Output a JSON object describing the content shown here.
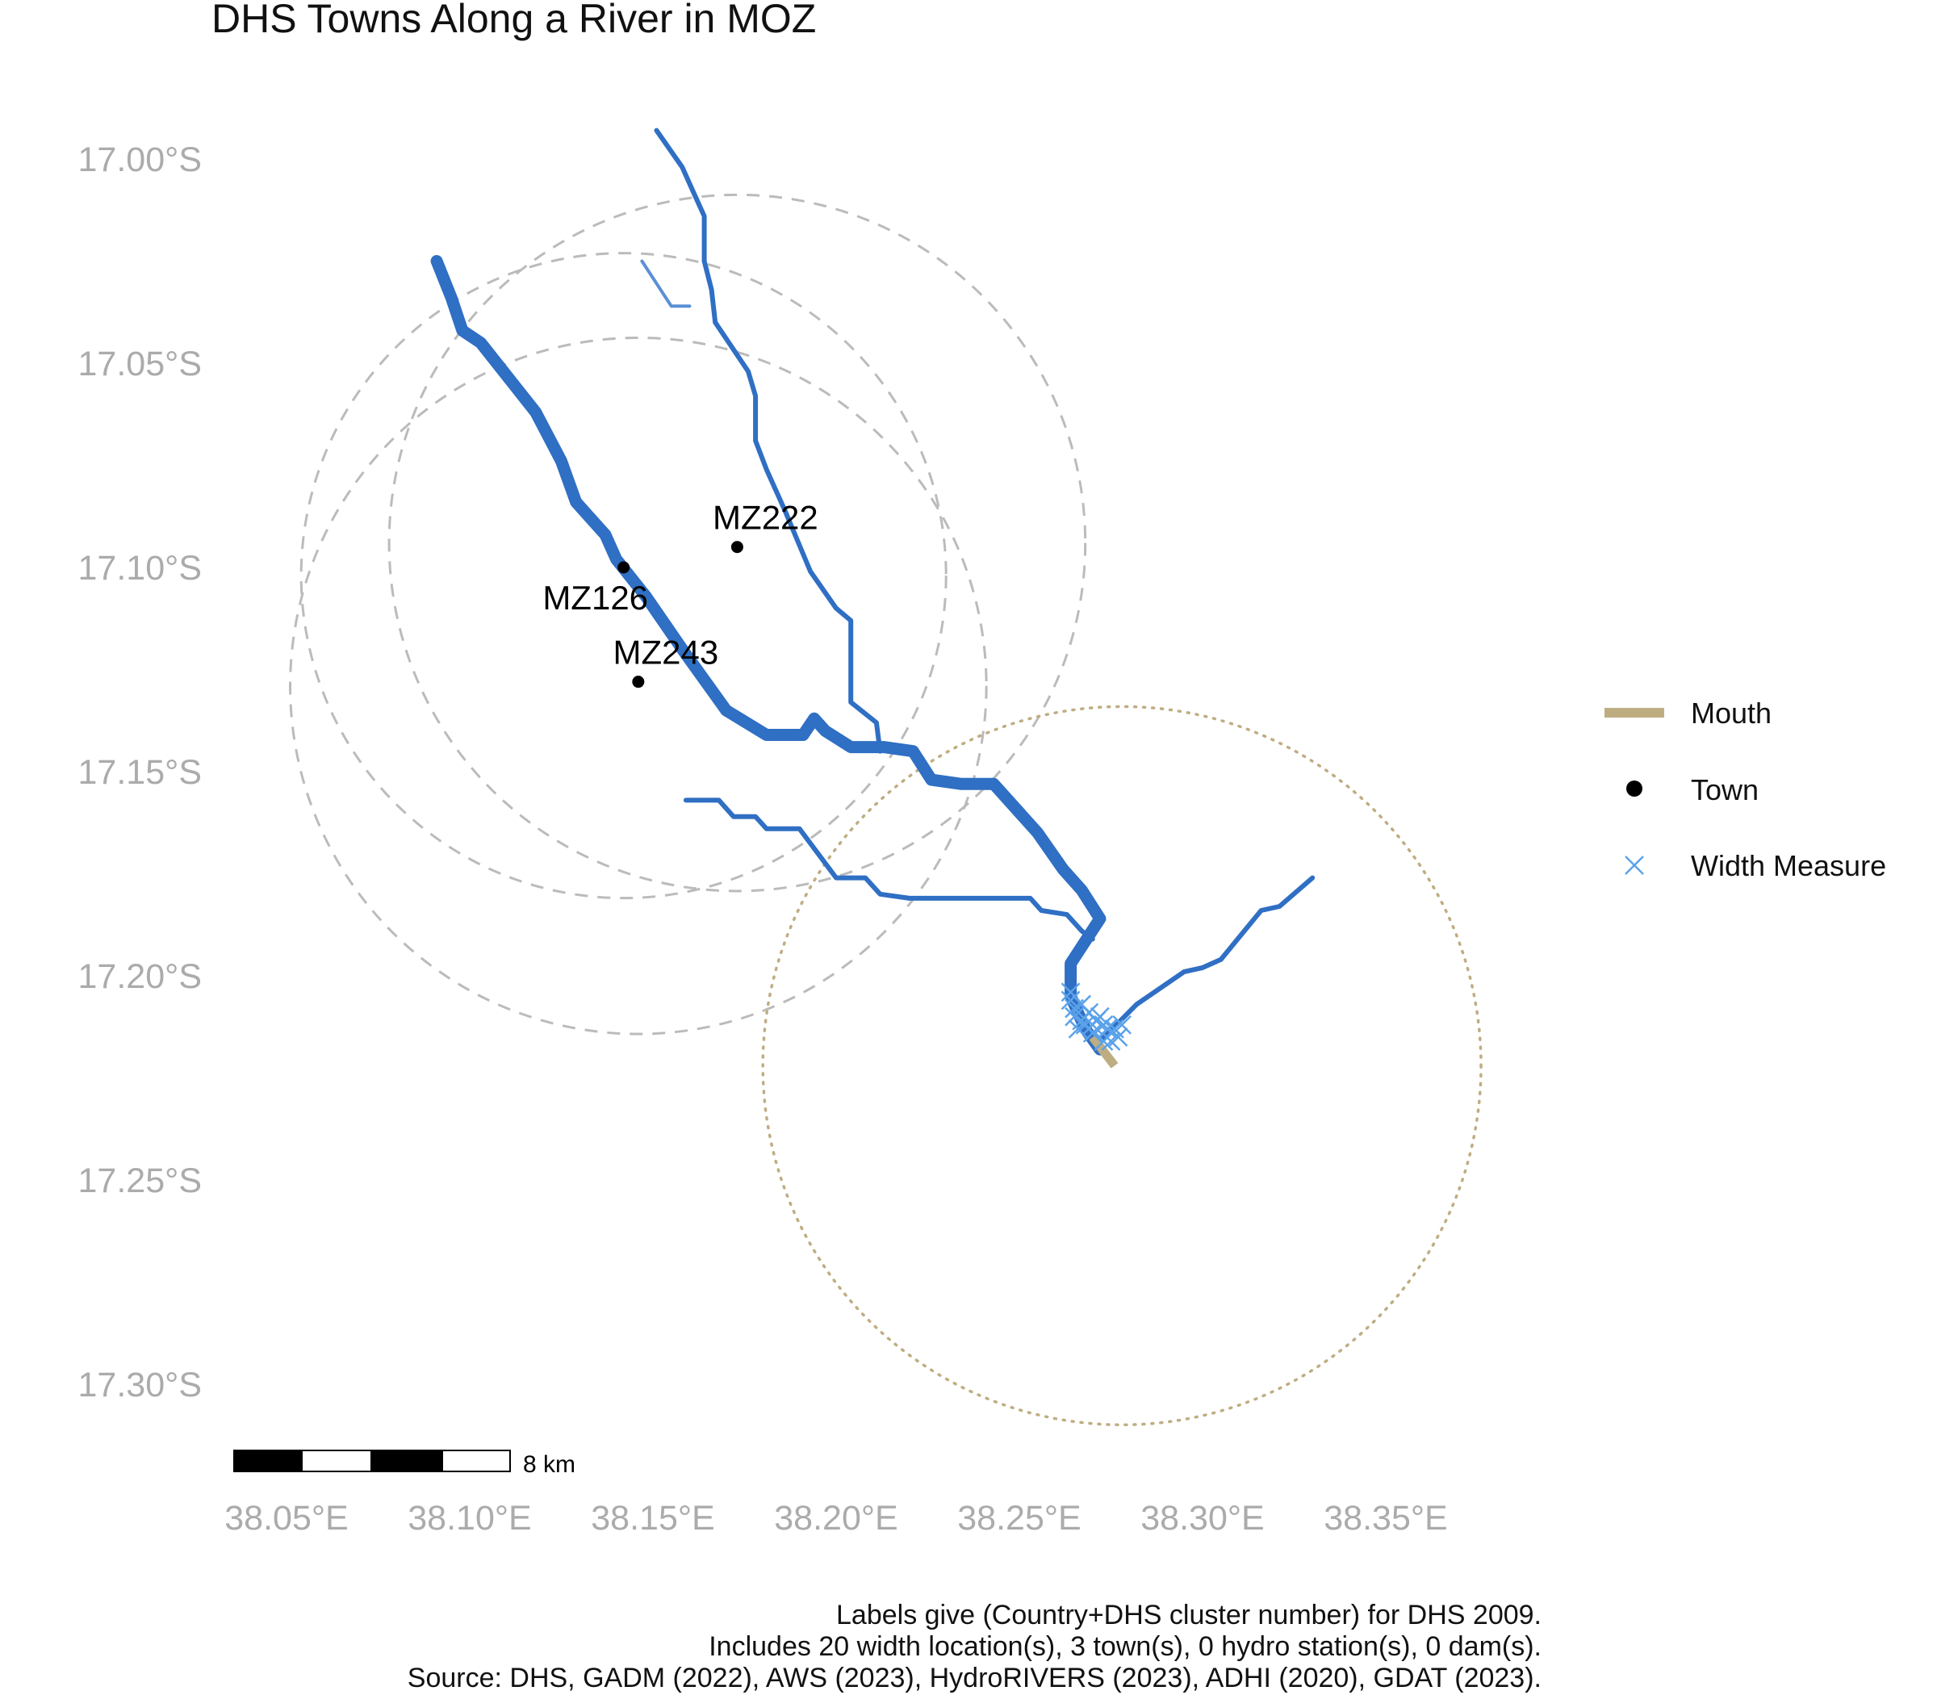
{
  "title": "DHS Towns Along a River in MOZ",
  "axes": {
    "y_ticks": [
      {
        "label": "17.00°S",
        "value": -17.0
      },
      {
        "label": "17.05°S",
        "value": -17.05
      },
      {
        "label": "17.10°S",
        "value": -17.1
      },
      {
        "label": "17.15°S",
        "value": -17.15
      },
      {
        "label": "17.20°S",
        "value": -17.2
      },
      {
        "label": "17.25°S",
        "value": -17.25
      },
      {
        "label": "17.30°S",
        "value": -17.3
      }
    ],
    "x_ticks": [
      {
        "label": "38.05°E",
        "value": 38.05
      },
      {
        "label": "38.10°E",
        "value": 38.1
      },
      {
        "label": "38.15°E",
        "value": 38.15
      },
      {
        "label": "38.20°E",
        "value": 38.2
      },
      {
        "label": "38.25°E",
        "value": 38.25
      },
      {
        "label": "38.30°E",
        "value": 38.3
      },
      {
        "label": "38.35°E",
        "value": 38.35
      }
    ]
  },
  "colors": {
    "river": "#2f6fc4",
    "river_light": "#5b8fd4",
    "mouth": "#bfad82",
    "width_measure": "#5aa2ea",
    "town": "#000000",
    "buffer": "#bbbbbb",
    "axis_text": "#ababab"
  },
  "rivers": [
    {
      "id": "main-stem",
      "kind": "main",
      "points": [
        [
          38.091,
          -17.025
        ],
        [
          38.095,
          -17.034
        ],
        [
          38.098,
          -17.042
        ],
        [
          38.103,
          -17.045
        ],
        [
          38.118,
          -17.062
        ],
        [
          38.125,
          -17.074
        ],
        [
          38.129,
          -17.084
        ],
        [
          38.133,
          -17.088
        ],
        [
          38.137,
          -17.092
        ],
        [
          38.14,
          -17.098
        ],
        [
          38.148,
          -17.107
        ],
        [
          38.158,
          -17.12
        ],
        [
          38.17,
          -17.135
        ],
        [
          38.181,
          -17.141
        ],
        [
          38.191,
          -17.141
        ],
        [
          38.194,
          -17.137
        ],
        [
          38.197,
          -17.14
        ],
        [
          38.204,
          -17.144
        ],
        [
          38.213,
          -17.144
        ],
        [
          38.221,
          -17.145
        ],
        [
          38.226,
          -17.152
        ],
        [
          38.234,
          -17.153
        ],
        [
          38.243,
          -17.153
        ],
        [
          38.255,
          -17.165
        ],
        [
          38.262,
          -17.174
        ],
        [
          38.267,
          -17.179
        ],
        [
          38.272,
          -17.186
        ],
        [
          38.264,
          -17.197
        ],
        [
          38.264,
          -17.205
        ],
        [
          38.268,
          -17.213
        ],
        [
          38.272,
          -17.218
        ]
      ]
    },
    {
      "id": "north-tributary",
      "kind": "tributary",
      "points": [
        [
          38.151,
          -16.993
        ],
        [
          38.158,
          -17.002
        ],
        [
          38.161,
          -17.008
        ],
        [
          38.164,
          -17.014
        ],
        [
          38.164,
          -17.025
        ],
        [
          38.166,
          -17.032
        ],
        [
          38.167,
          -17.04
        ],
        [
          38.176,
          -17.052
        ],
        [
          38.178,
          -17.058
        ],
        [
          38.178,
          -17.069
        ],
        [
          38.181,
          -17.076
        ],
        [
          38.186,
          -17.086
        ],
        [
          38.193,
          -17.101
        ],
        [
          38.2,
          -17.11
        ],
        [
          38.204,
          -17.113
        ],
        [
          38.204,
          -17.133
        ],
        [
          38.211,
          -17.138
        ],
        [
          38.212,
          -17.145
        ]
      ]
    },
    {
      "id": "north-small-branch",
      "kind": "branch",
      "points": [
        [
          38.147,
          -17.025
        ],
        [
          38.155,
          -17.036
        ],
        [
          38.16,
          -17.036
        ]
      ]
    },
    {
      "id": "west-tributary",
      "kind": "tributary",
      "points": [
        [
          38.159,
          -17.157
        ],
        [
          38.168,
          -17.157
        ],
        [
          38.172,
          -17.161
        ],
        [
          38.178,
          -17.161
        ],
        [
          38.181,
          -17.164
        ],
        [
          38.19,
          -17.164
        ],
        [
          38.195,
          -17.17
        ],
        [
          38.2,
          -17.176
        ],
        [
          38.208,
          -17.176
        ],
        [
          38.212,
          -17.18
        ],
        [
          38.22,
          -17.181
        ],
        [
          38.253,
          -17.181
        ],
        [
          38.256,
          -17.184
        ],
        [
          38.263,
          -17.185
        ],
        [
          38.267,
          -17.189
        ],
        [
          38.27,
          -17.191
        ]
      ]
    },
    {
      "id": "east-tributary",
      "kind": "tributary",
      "points": [
        [
          38.272,
          -17.216
        ],
        [
          38.282,
          -17.207
        ],
        [
          38.295,
          -17.199
        ],
        [
          38.3,
          -17.198
        ],
        [
          38.305,
          -17.196
        ],
        [
          38.316,
          -17.184
        ],
        [
          38.321,
          -17.183
        ],
        [
          38.33,
          -17.176
        ]
      ]
    }
  ],
  "mouth": {
    "label": "Mouth",
    "points": [
      [
        38.27,
        -17.215
      ],
      [
        38.276,
        -17.222
      ]
    ]
  },
  "towns": [
    {
      "id": "MZ222",
      "label": "MZ222",
      "lon": 38.173,
      "lat": -17.095
    },
    {
      "id": "MZ126",
      "label": "MZ126",
      "lon": 38.142,
      "lat": -17.1
    },
    {
      "id": "MZ243",
      "label": "MZ243",
      "lon": 38.146,
      "lat": -17.128
    }
  ],
  "town_buffers": [
    {
      "lon": 38.173,
      "lat": -17.094,
      "radius_deg": 0.095
    },
    {
      "lon": 38.142,
      "lat": -17.102,
      "radius_deg": 0.088
    },
    {
      "lon": 38.146,
      "lat": -17.129,
      "radius_deg": 0.095
    }
  ],
  "mouth_buffer": {
    "lon": 38.278,
    "lat": -17.222,
    "radius_deg": 0.098
  },
  "width_measures": [
    [
      38.264,
      -17.204
    ],
    [
      38.264,
      -17.206
    ],
    [
      38.265,
      -17.208
    ],
    [
      38.265,
      -17.21
    ],
    [
      38.267,
      -17.211
    ],
    [
      38.266,
      -17.213
    ],
    [
      38.268,
      -17.212
    ],
    [
      38.27,
      -17.214
    ],
    [
      38.271,
      -17.211
    ],
    [
      38.272,
      -17.21
    ],
    [
      38.273,
      -17.212
    ],
    [
      38.274,
      -17.213
    ],
    [
      38.276,
      -17.213
    ],
    [
      38.277,
      -17.215
    ],
    [
      38.275,
      -17.216
    ],
    [
      38.273,
      -17.216
    ],
    [
      38.269,
      -17.209
    ],
    [
      38.267,
      -17.207
    ],
    [
      38.27,
      -17.212
    ],
    [
      38.278,
      -17.212
    ]
  ],
  "legend": {
    "items": [
      {
        "key": "mouth",
        "label": "Mouth"
      },
      {
        "key": "town",
        "label": "Town"
      },
      {
        "key": "width",
        "label": "Width Measure"
      }
    ]
  },
  "scale_bar": {
    "label": "8 km"
  },
  "caption": [
    "Labels give (Country+DHS cluster number) for DHS 2009.",
    "Includes 20 width location(s), 3 town(s), 0 hydro station(s), 0 dam(s).",
    "Source: DHS, GADM (2022), AWS (2023), HydroRIVERS (2023), ADHI (2020), GDAT (2023)."
  ]
}
